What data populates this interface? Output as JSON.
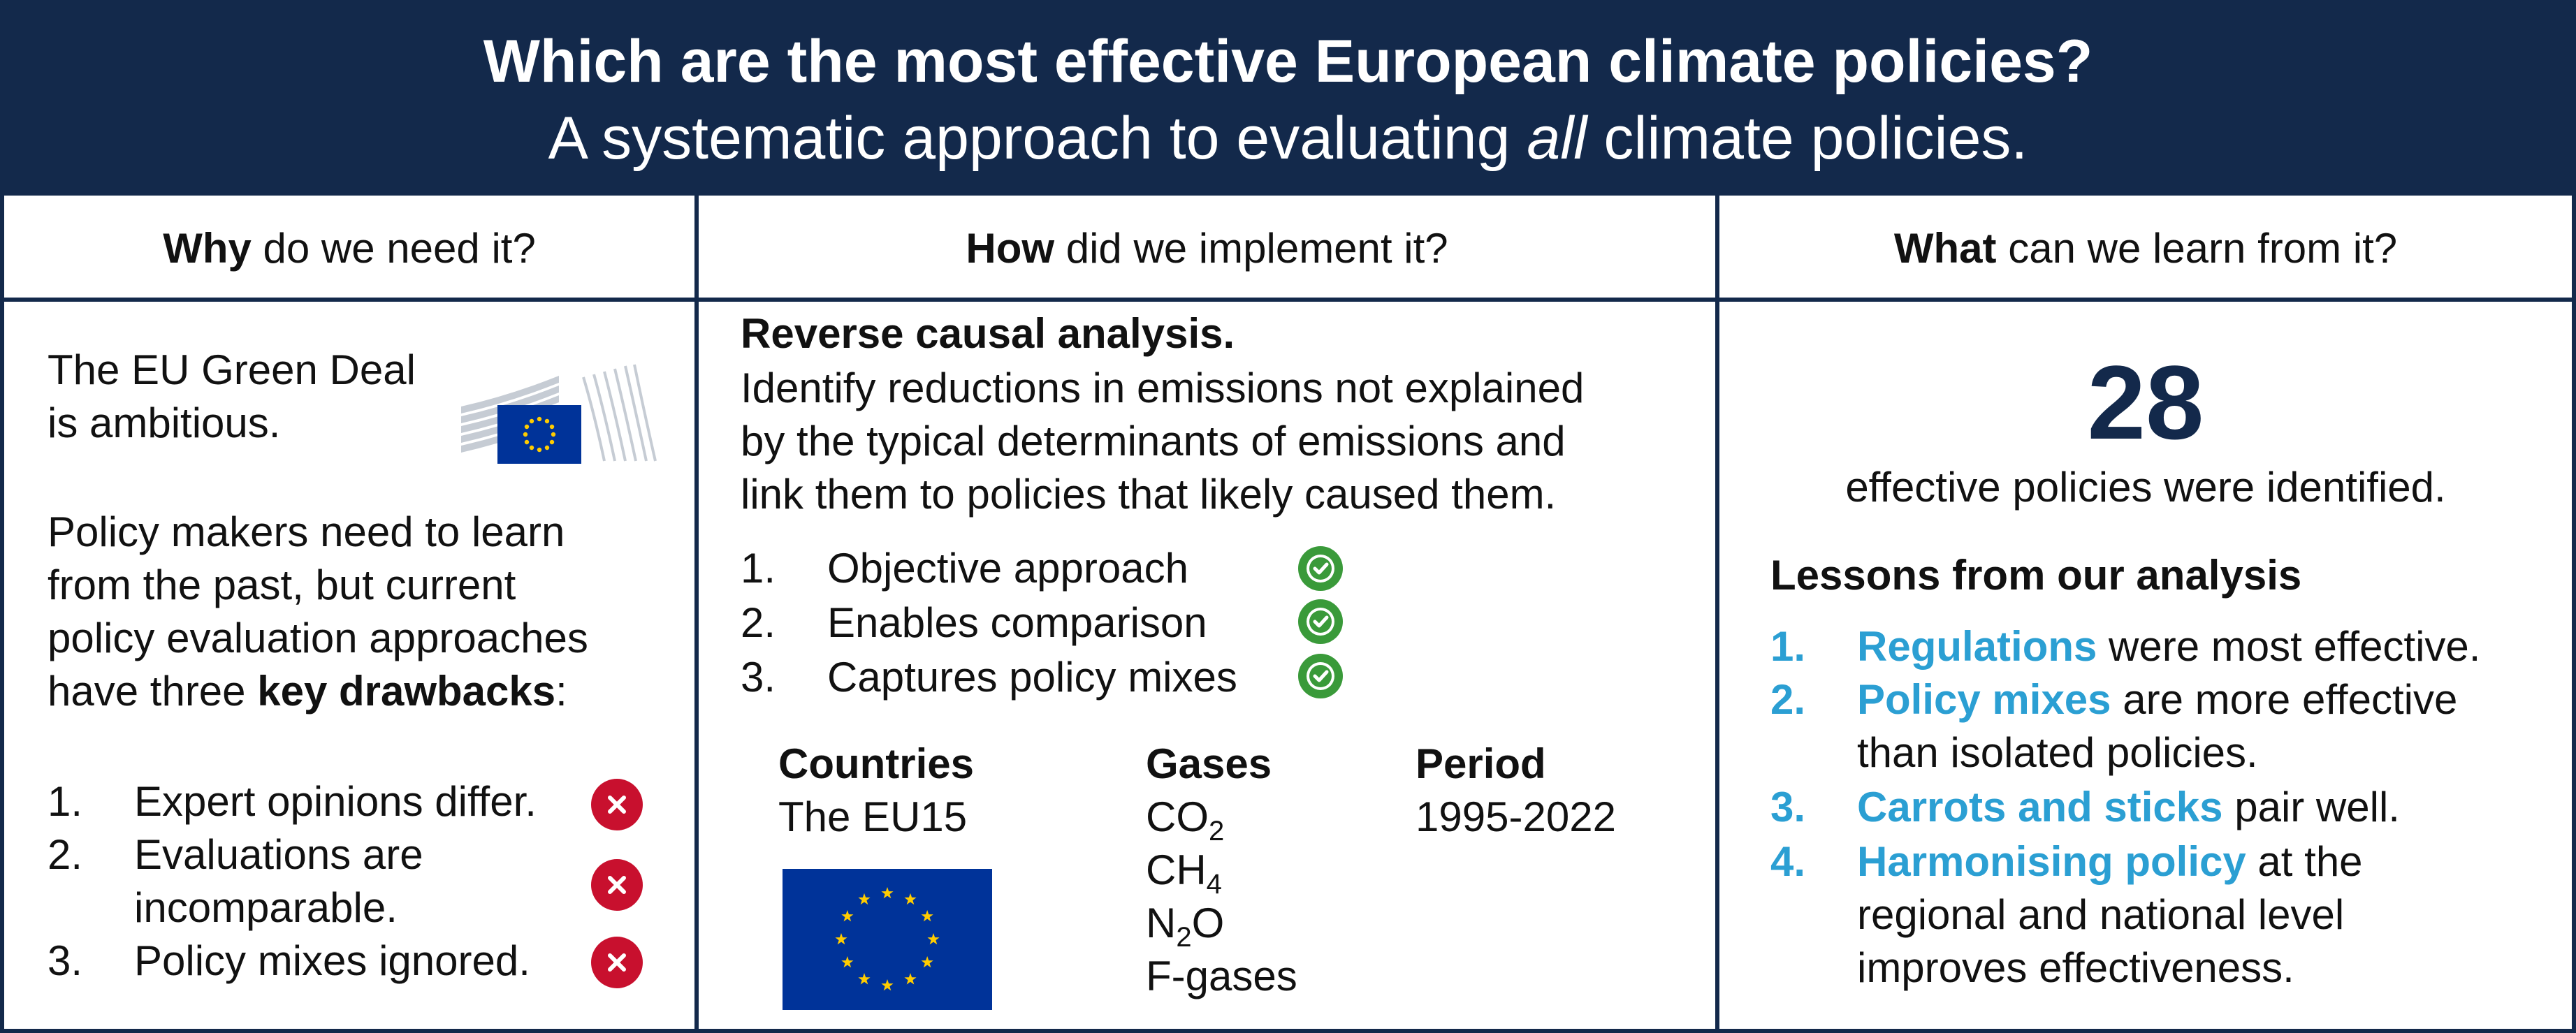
{
  "header": {
    "title": "Which are the most effective European climate policies?",
    "subtitle_pre": "A systematic approach to evaluating ",
    "subtitle_italic": "all",
    "subtitle_post": " climate policies."
  },
  "columns": {
    "why": {
      "bold": "Why",
      "rest": " do we need it?"
    },
    "how": {
      "bold": "How",
      "rest": " did we implement it?"
    },
    "what": {
      "bold": "What",
      "rest": " can we learn from it?"
    }
  },
  "why": {
    "intro_line1": "The EU Green Deal",
    "intro_line2": "is ambitious.",
    "para_line1": "Policy makers need to learn",
    "para_line2": "from the past, but current",
    "para_line3": "policy evaluation approaches",
    "para_line4_pre": "have three ",
    "para_line4_bold": "key drawbacks",
    "para_line4_post": ":",
    "drawbacks": [
      {
        "num": "1.",
        "line1": "Expert opinions differ.",
        "line2": ""
      },
      {
        "num": "2.",
        "line1": "Evaluations are",
        "line2": "incomparable."
      },
      {
        "num": "3.",
        "line1": "Policy mixes ignored.",
        "line2": ""
      }
    ]
  },
  "how": {
    "heading": "Reverse causal analysis.",
    "desc_line1": "Identify reductions in emissions not explained",
    "desc_line2": "by the typical determinants of emissions and",
    "desc_line3": "link them to policies that likely caused them.",
    "benefits": [
      {
        "num": "1.",
        "label": "Objective approach"
      },
      {
        "num": "2.",
        "label": "Enables comparison"
      },
      {
        "num": "3.",
        "label": "Captures policy mixes"
      }
    ],
    "countries_label": "Countries",
    "countries_value": "The EU15",
    "gases_label": "Gases",
    "gases": [
      {
        "base": "CO",
        "sub": "2",
        "post": ""
      },
      {
        "base": "CH",
        "sub": "4",
        "post": ""
      },
      {
        "base": "N",
        "sub": "2",
        "post": "O"
      },
      {
        "base": "F-gases",
        "sub": "",
        "post": ""
      }
    ],
    "period_label": "Period",
    "period_value": "1995-2022"
  },
  "what": {
    "number": "28",
    "number_caption": "effective policies were identified.",
    "lessons_title": "Lessons from our analysis",
    "lessons": [
      {
        "num": "1.",
        "highlight": "Regulations",
        "line1": " were most effective.",
        "line2": "",
        "line3": ""
      },
      {
        "num": "2.",
        "highlight": "Policy mixes",
        "line1": " are more effective",
        "line2": "than isolated policies.",
        "line3": ""
      },
      {
        "num": "3.",
        "highlight": "Carrots and sticks",
        "line1": " pair well.",
        "line2": "",
        "line3": ""
      },
      {
        "num": "4.",
        "highlight": "Harmonising policy",
        "line1": " at the",
        "line2": "regional and national level",
        "line3": "improves effectiveness."
      }
    ]
  },
  "colors": {
    "navy": "#13294b",
    "accent_blue": "#2b9fd3",
    "cross_red": "#c8102e",
    "check_green": "#3a9a3a",
    "eu_blue": "#003399",
    "eu_gold": "#ffcc00"
  },
  "icons": [
    "eu-commission-logo",
    "cross-icon",
    "check-icon",
    "eu-flag"
  ]
}
